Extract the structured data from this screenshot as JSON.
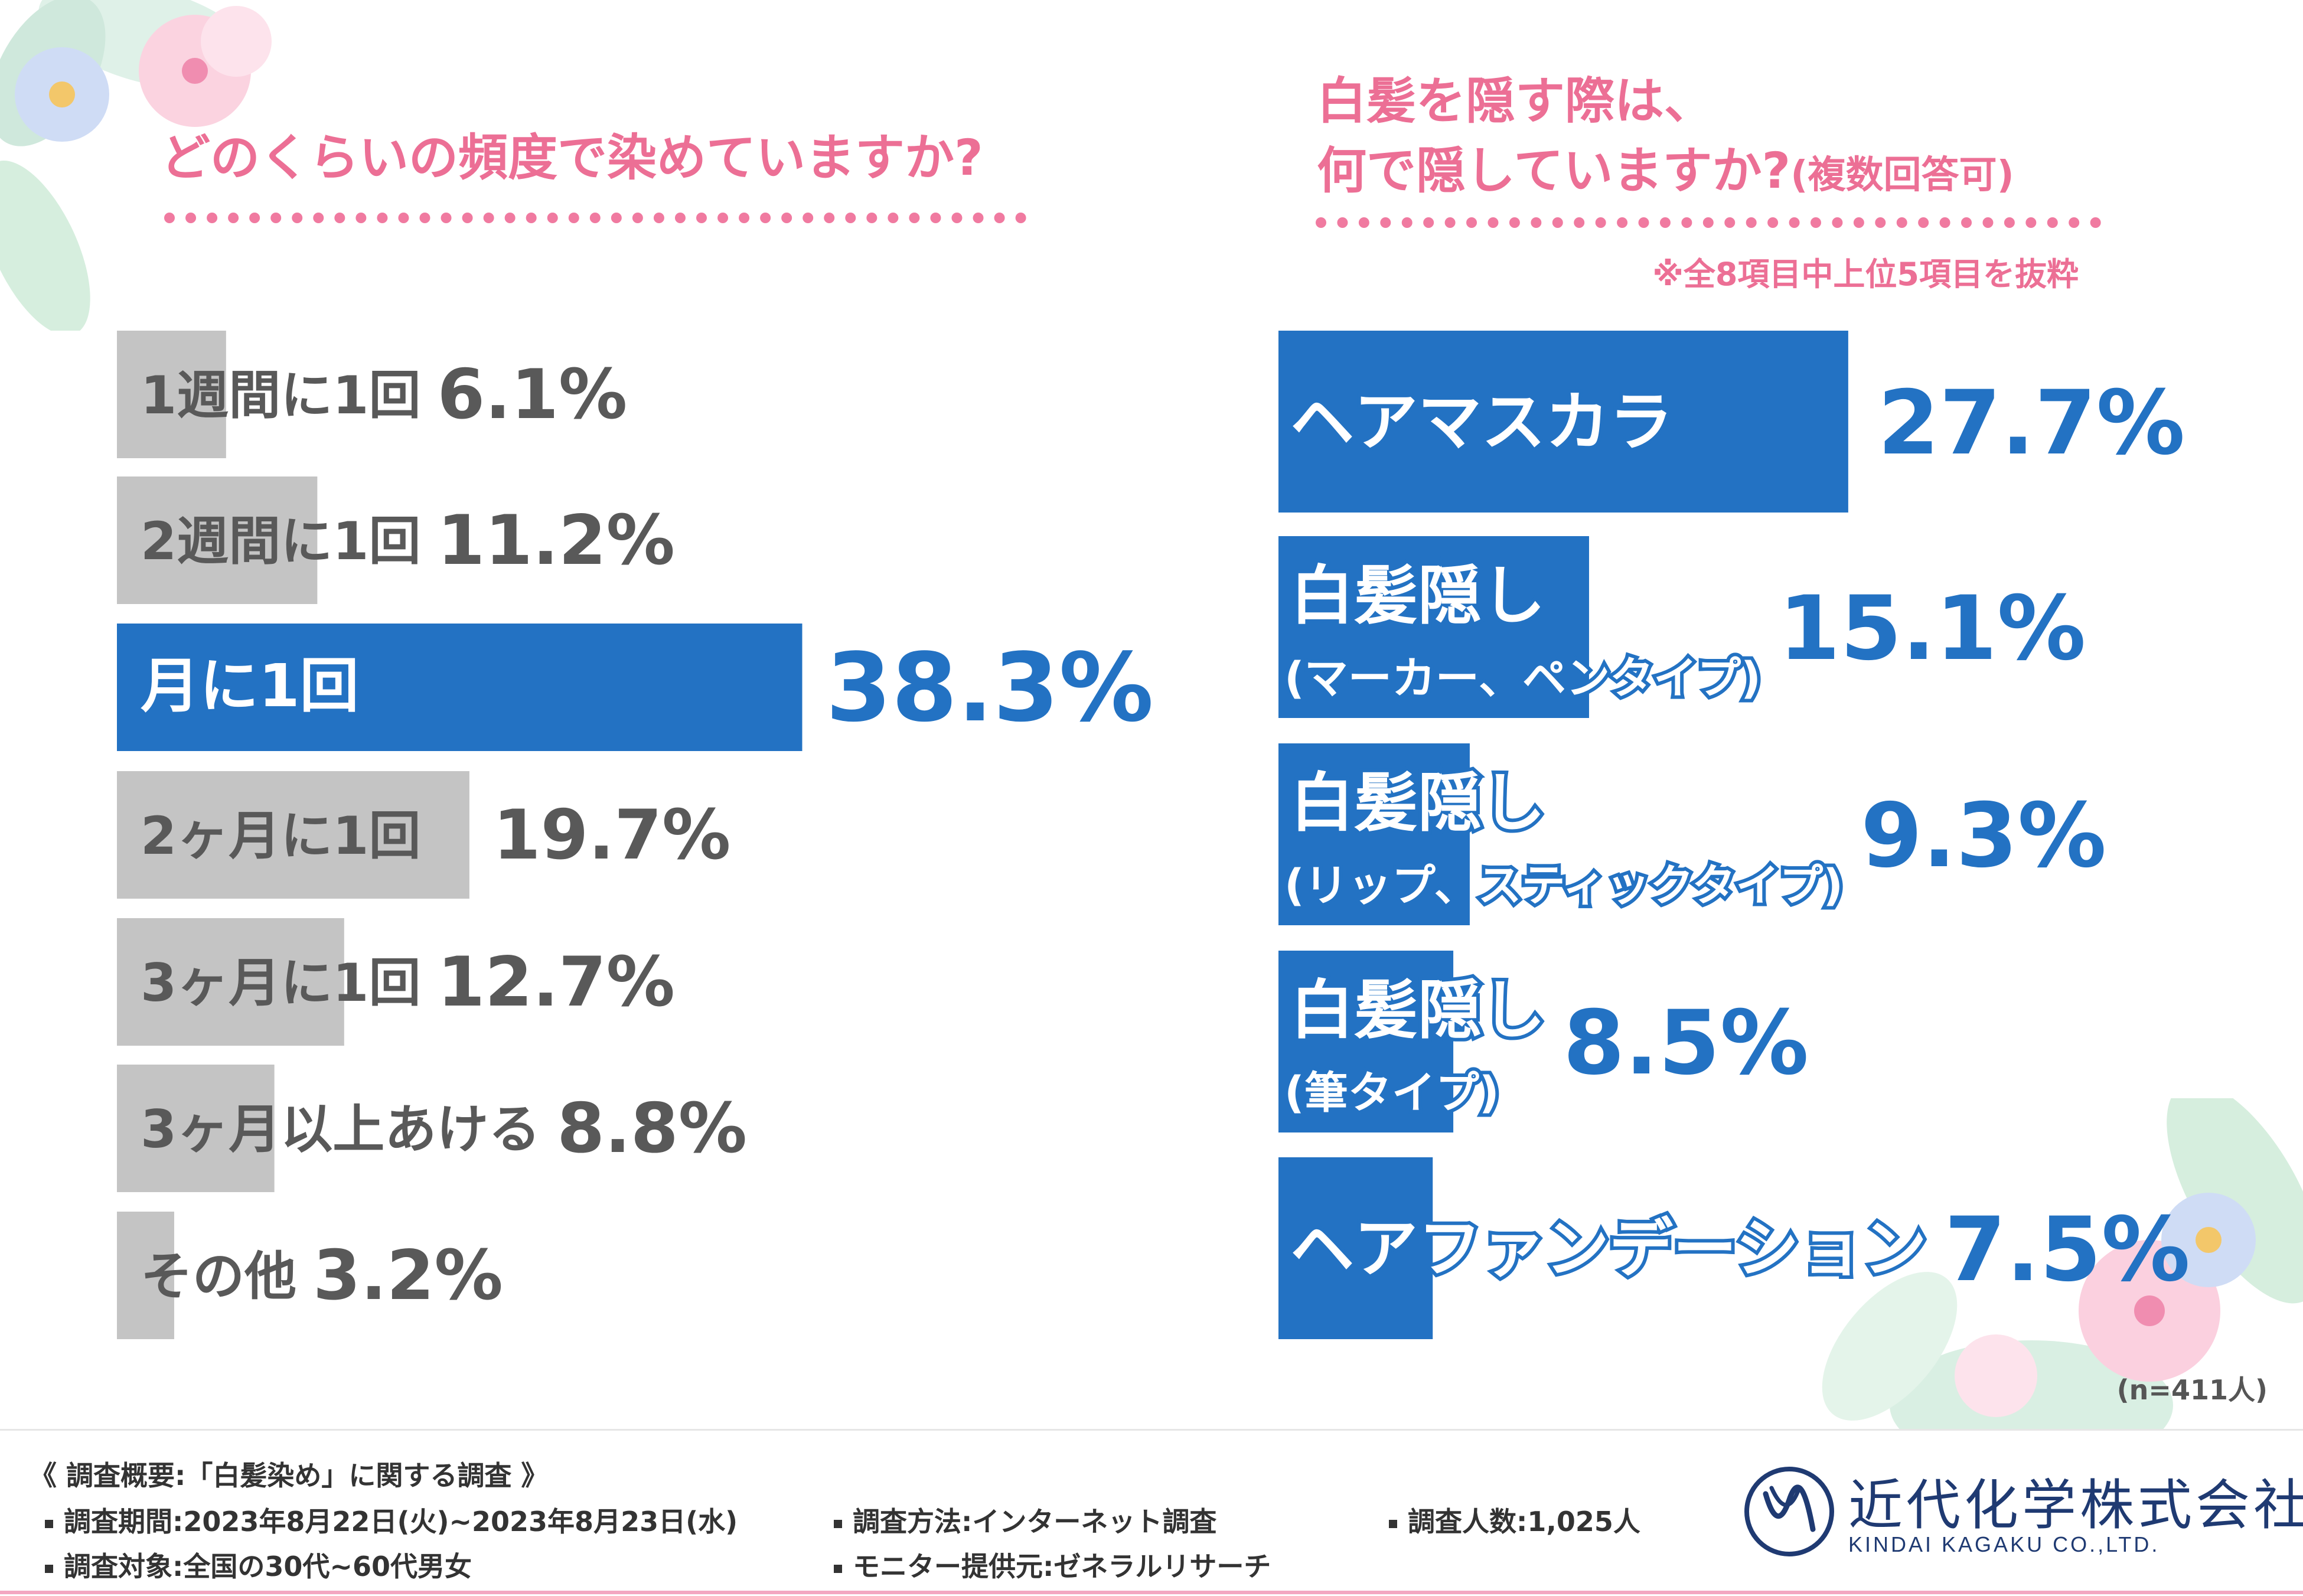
{
  "left": {
    "title": "どのくらいの頻度で染めていますか?"
  },
  "right": {
    "title_line1": "白髪を隠す際は、",
    "title_line2": "何で隠していますか?",
    "title_suffix": "(複数回答可)",
    "note": "※全8項目中上位5項目を抜粋"
  },
  "n_label": "(n=411人)",
  "footer": {
    "heading": "《 調査概要:「白髪染め」に関する調査 》",
    "period": "調査期間:2023年8月22日(火)~2023年8月23日(水)",
    "method": "調査方法:インターネット調査",
    "count": "調査人数:1,025人",
    "target": "調査対象:全国の30代~60代男女",
    "provider": "モニター提供元:ゼネラルリサーチ"
  },
  "logo": {
    "name": "近代化学株式会社",
    "sub": "KINDAI KAGAKU CO.,LTD."
  },
  "colors": {
    "highlight": "#2372c3",
    "gray": "#c4c4c4",
    "gray_text": "#595959",
    "pink": "#ec6f95"
  },
  "chart_data": [
    {
      "type": "bar",
      "orientation": "horizontal",
      "title": "どのくらいの頻度で染めていますか?",
      "unit": "%",
      "categories": [
        "1週間に1回",
        "2週間に1回",
        "月に1回",
        "2ヶ月に1回",
        "3ヶ月に1回",
        "3ヶ月以上あける",
        "その他"
      ],
      "values": [
        6.1,
        11.2,
        38.3,
        19.7,
        12.7,
        8.8,
        3.2
      ],
      "value_labels": [
        "6.1%",
        "11.2%",
        "38.3%",
        "19.7%",
        "12.7%",
        "8.8%",
        "3.2%"
      ],
      "highlight_index": 2,
      "xlim": [
        0,
        40
      ]
    },
    {
      "type": "bar",
      "orientation": "horizontal",
      "title": "白髪を隠す際は、何で隠していますか?(複数回答可)",
      "unit": "%",
      "categories": [
        [
          "ヘアマスカラ"
        ],
        [
          "白髪隠し",
          "(マーカー、ペンタイプ)"
        ],
        [
          "白髪隠し",
          "(リップ、スティックタイプ)"
        ],
        [
          "白髪隠し",
          "(筆タイプ)"
        ],
        [
          "ヘアファンデーション"
        ]
      ],
      "values": [
        27.7,
        15.1,
        9.3,
        8.5,
        7.5
      ],
      "value_labels": [
        "27.7%",
        "15.1%",
        "9.3%",
        "8.5%",
        "7.5%"
      ],
      "xlim": [
        0,
        30
      ]
    }
  ]
}
